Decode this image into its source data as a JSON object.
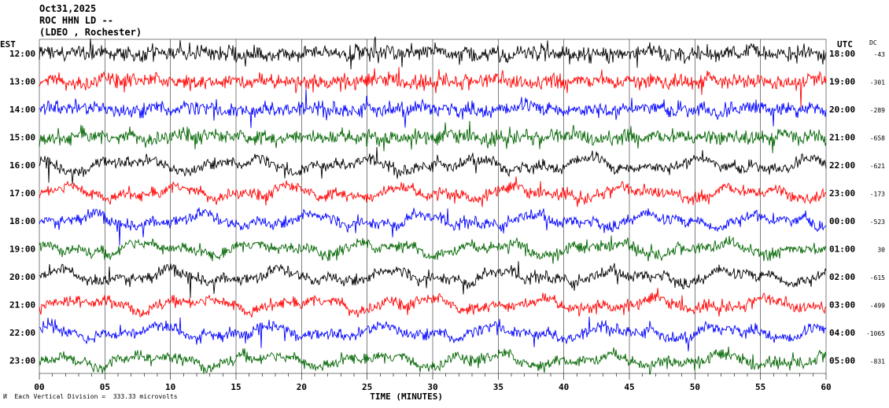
{
  "header": {
    "date": "Oct31,2025",
    "station": "ROC HHN LD --",
    "network": "(LDEO , Rochester)"
  },
  "left_tz": "EST",
  "right_tz": "UTC",
  "dc_label": "DC",
  "xlabel": "TIME (MINUTES)",
  "footer": "Each Vertical Division =  333.33 microvolts",
  "footer_mark": "И",
  "colors": {
    "black": "#000000",
    "red": "#ff0000",
    "blue": "#0000ff",
    "green": "#006400"
  },
  "chart_data": {
    "type": "line",
    "title": "",
    "xlabel": "TIME (MINUTES)",
    "xlim": [
      0,
      60
    ],
    "xticks": [
      0,
      5,
      10,
      15,
      20,
      25,
      30,
      35,
      40,
      45,
      50,
      55,
      60
    ],
    "xtick_labels": [
      "00",
      "05",
      "10",
      "15",
      "20",
      "25",
      "30",
      "35",
      "40",
      "45",
      "50",
      "55",
      "60"
    ],
    "traces": [
      {
        "est": "12:00",
        "utc": "18:00",
        "dc": "-43",
        "color": "black"
      },
      {
        "est": "13:00",
        "utc": "19:00",
        "dc": "-301",
        "color": "red"
      },
      {
        "est": "14:00",
        "utc": "20:00",
        "dc": "-289",
        "color": "blue"
      },
      {
        "est": "15:00",
        "utc": "21:00",
        "dc": "-658",
        "color": "green"
      },
      {
        "est": "16:00",
        "utc": "22:00",
        "dc": "-621",
        "color": "black"
      },
      {
        "est": "17:00",
        "utc": "23:00",
        "dc": "-173",
        "color": "red"
      },
      {
        "est": "18:00",
        "utc": "00:00",
        "dc": "-523",
        "color": "blue"
      },
      {
        "est": "19:00",
        "utc": "01:00",
        "dc": "30",
        "color": "green"
      },
      {
        "est": "20:00",
        "utc": "02:00",
        "dc": "-615",
        "color": "black"
      },
      {
        "est": "21:00",
        "utc": "03:00",
        "dc": "-499",
        "color": "red"
      },
      {
        "est": "22:00",
        "utc": "04:00",
        "dc": "-1065",
        "color": "blue"
      },
      {
        "est": "23:00",
        "utc": "05:00",
        "dc": "-831",
        "color": "green"
      }
    ]
  }
}
